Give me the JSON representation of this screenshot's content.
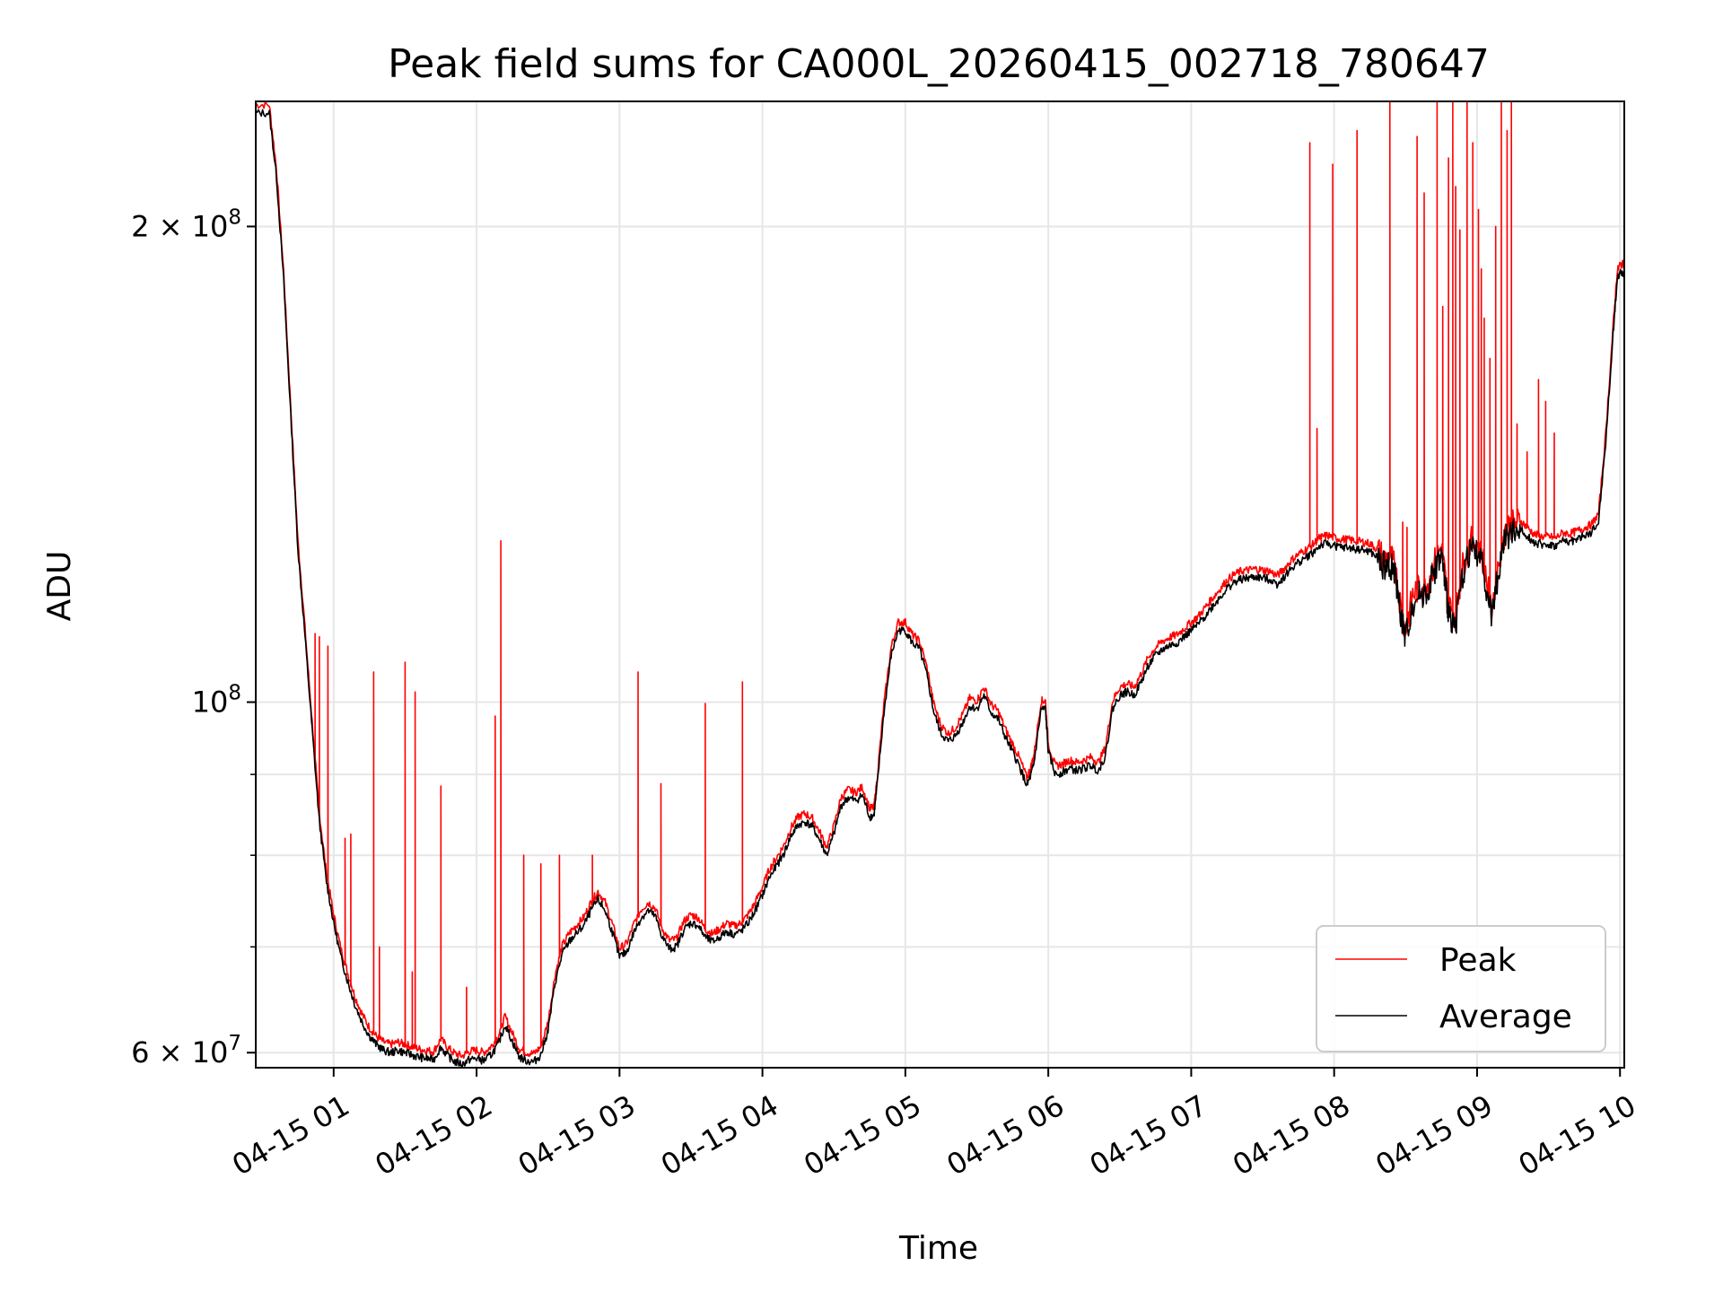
{
  "chart_data": {
    "type": "line",
    "title": "Peak field sums for CA000L_20260415_002718_780647",
    "xlabel": "Time",
    "ylabel": "ADU",
    "y_scale": "log",
    "ylim": [
      58700000,
      240000000
    ],
    "xlim_hours": [
      0.455,
      10.03
    ],
    "grid": true,
    "legend_position": "lower-right",
    "x_ticks": [
      {
        "hour": 1,
        "label": "04-15 01"
      },
      {
        "hour": 2,
        "label": "04-15 02"
      },
      {
        "hour": 3,
        "label": "04-15 03"
      },
      {
        "hour": 4,
        "label": "04-15 04"
      },
      {
        "hour": 5,
        "label": "04-15 05"
      },
      {
        "hour": 6,
        "label": "04-15 06"
      },
      {
        "hour": 7,
        "label": "04-15 07"
      },
      {
        "hour": 8,
        "label": "04-15 08"
      },
      {
        "hour": 9,
        "label": "04-15 09"
      },
      {
        "hour": 10,
        "label": "04-15 10"
      }
    ],
    "y_major_ticks": [
      {
        "value": 60000000,
        "base": "6 × 10",
        "exp": "7"
      },
      {
        "value": 100000000,
        "base": "10",
        "exp": "8"
      },
      {
        "value": 200000000,
        "base": "2 × 10",
        "exp": "8"
      }
    ],
    "y_minor_ticks": [
      70000000,
      80000000,
      90000000
    ],
    "series": [
      {
        "name": "Average",
        "color": "#000000",
        "points": [
          [
            0.455,
            236
          ],
          [
            0.55,
            236
          ],
          [
            0.6,
            215
          ],
          [
            0.65,
            185
          ],
          [
            0.7,
            152
          ],
          [
            0.75,
            125
          ],
          [
            0.8,
            110
          ],
          [
            0.85,
            96
          ],
          [
            0.9,
            84
          ],
          [
            0.95,
            77
          ],
          [
            1.0,
            72.5
          ],
          [
            1.05,
            69
          ],
          [
            1.1,
            66.5
          ],
          [
            1.15,
            64.3
          ],
          [
            1.2,
            62.7
          ],
          [
            1.25,
            61.5
          ],
          [
            1.3,
            60.7
          ],
          [
            1.35,
            60.2
          ],
          [
            1.4,
            60.0
          ],
          [
            1.45,
            60.2
          ],
          [
            1.5,
            60.0
          ],
          [
            1.55,
            59.8
          ],
          [
            1.6,
            59.6
          ],
          [
            1.65,
            59.5
          ],
          [
            1.7,
            59.4
          ],
          [
            1.75,
            60.5
          ],
          [
            1.8,
            59.7
          ],
          [
            1.85,
            59.2
          ],
          [
            1.9,
            59.0
          ],
          [
            1.95,
            59.4
          ],
          [
            2.0,
            59.5
          ],
          [
            2.05,
            59.3
          ],
          [
            2.1,
            59.8
          ],
          [
            2.15,
            60.7
          ],
          [
            2.2,
            62.5
          ],
          [
            2.25,
            61.0
          ],
          [
            2.3,
            59.6
          ],
          [
            2.35,
            59.3
          ],
          [
            2.4,
            59.2
          ],
          [
            2.45,
            59.8
          ],
          [
            2.5,
            62.0
          ],
          [
            2.55,
            66.5
          ],
          [
            2.6,
            69.3
          ],
          [
            2.65,
            70.6
          ],
          [
            2.7,
            71.4
          ],
          [
            2.75,
            72.2
          ],
          [
            2.8,
            73.8
          ],
          [
            2.85,
            75.0
          ],
          [
            2.9,
            73.8
          ],
          [
            2.95,
            71.5
          ],
          [
            3.0,
            69.0
          ],
          [
            3.05,
            69.5
          ],
          [
            3.1,
            71.5
          ],
          [
            3.15,
            73.0
          ],
          [
            3.2,
            73.8
          ],
          [
            3.25,
            73.2
          ],
          [
            3.3,
            71.0
          ],
          [
            3.35,
            69.8
          ],
          [
            3.4,
            70.0
          ],
          [
            3.45,
            71.8
          ],
          [
            3.5,
            72.5
          ],
          [
            3.55,
            72.2
          ],
          [
            3.6,
            71.0
          ],
          [
            3.65,
            70.5
          ],
          [
            3.7,
            71.0
          ],
          [
            3.75,
            71.6
          ],
          [
            3.8,
            71.3
          ],
          [
            3.85,
            71.6
          ],
          [
            3.9,
            72.5
          ],
          [
            3.95,
            73.8
          ],
          [
            4.0,
            75.5
          ],
          [
            4.05,
            77.5
          ],
          [
            4.1,
            78.8
          ],
          [
            4.15,
            80.2
          ],
          [
            4.2,
            82.3
          ],
          [
            4.25,
            83.6
          ],
          [
            4.3,
            84.0
          ],
          [
            4.35,
            83.4
          ],
          [
            4.4,
            81.8
          ],
          [
            4.45,
            80.0
          ],
          [
            4.5,
            82.5
          ],
          [
            4.55,
            86.0
          ],
          [
            4.6,
            87.0
          ],
          [
            4.65,
            86.6
          ],
          [
            4.7,
            87.3
          ],
          [
            4.75,
            84.6
          ],
          [
            4.78,
            84.8
          ],
          [
            4.8,
            88.0
          ],
          [
            4.85,
            98.5
          ],
          [
            4.9,
            107.0
          ],
          [
            4.95,
            111.0
          ],
          [
            5.0,
            111.0
          ],
          [
            5.05,
            109.0
          ],
          [
            5.1,
            108.0
          ],
          [
            5.15,
            104.0
          ],
          [
            5.2,
            98.5
          ],
          [
            5.25,
            95.5
          ],
          [
            5.3,
            94.4
          ],
          [
            5.35,
            95.2
          ],
          [
            5.4,
            97.0
          ],
          [
            5.45,
            99.4
          ],
          [
            5.5,
            99.0
          ],
          [
            5.55,
            101.0
          ],
          [
            5.6,
            98.5
          ],
          [
            5.65,
            97.5
          ],
          [
            5.7,
            95.0
          ],
          [
            5.75,
            93.0
          ],
          [
            5.8,
            91.0
          ],
          [
            5.85,
            88.5
          ],
          [
            5.88,
            90.0
          ],
          [
            5.9,
            91.5
          ],
          [
            5.95,
            99.0
          ],
          [
            5.98,
            99.0
          ],
          [
            6.0,
            93.0
          ],
          [
            6.05,
            90.0
          ],
          [
            6.1,
            90.3
          ],
          [
            6.15,
            90.8
          ],
          [
            6.2,
            90.5
          ],
          [
            6.25,
            90.8
          ],
          [
            6.3,
            91.2
          ],
          [
            6.35,
            90.5
          ],
          [
            6.4,
            92.5
          ],
          [
            6.45,
            99.0
          ],
          [
            6.5,
            101.0
          ],
          [
            6.55,
            101.5
          ],
          [
            6.6,
            101.0
          ],
          [
            6.65,
            103.0
          ],
          [
            6.7,
            105.5
          ],
          [
            6.75,
            107.0
          ],
          [
            6.8,
            108.0
          ],
          [
            6.85,
            108.6
          ],
          [
            6.9,
            109.0
          ],
          [
            6.95,
            110.0
          ],
          [
            7.0,
            111.0
          ],
          [
            7.05,
            112.0
          ],
          [
            7.1,
            113.5
          ],
          [
            7.15,
            115.0
          ],
          [
            7.2,
            116.5
          ],
          [
            7.25,
            118.0
          ],
          [
            7.3,
            119.0
          ],
          [
            7.35,
            119.6
          ],
          [
            7.4,
            119.8
          ],
          [
            7.45,
            120.0
          ],
          [
            7.5,
            119.8
          ],
          [
            7.55,
            119.6
          ],
          [
            7.6,
            118.8
          ],
          [
            7.65,
            120.0
          ],
          [
            7.7,
            121.5
          ],
          [
            7.75,
            122.6
          ],
          [
            7.8,
            123.4
          ],
          [
            7.85,
            124.3
          ],
          [
            7.9,
            125.6
          ],
          [
            7.95,
            126.0
          ],
          [
            8.0,
            125.6
          ],
          [
            8.05,
            125.3
          ],
          [
            8.1,
            125.2
          ],
          [
            8.15,
            125.0
          ],
          [
            8.2,
            124.8
          ],
          [
            8.25,
            124.5
          ],
          [
            8.3,
            123.5
          ],
          [
            8.35,
            121.8
          ],
          [
            8.4,
            122.0
          ],
          [
            8.43,
            119.8
          ],
          [
            8.47,
            113.0
          ],
          [
            8.5,
            109.5
          ],
          [
            8.55,
            115.5
          ],
          [
            8.6,
            117.0
          ],
          [
            8.65,
            117.3
          ],
          [
            8.7,
            121.0
          ],
          [
            8.75,
            124.0
          ],
          [
            8.78,
            118.0
          ],
          [
            8.8,
            114.0
          ],
          [
            8.85,
            112.0
          ],
          [
            8.9,
            120.5
          ],
          [
            8.95,
            125.0
          ],
          [
            9.0,
            124.5
          ],
          [
            9.05,
            121.0
          ],
          [
            9.1,
            113.0
          ],
          [
            9.15,
            121.0
          ],
          [
            9.2,
            127.5
          ],
          [
            9.25,
            128.0
          ],
          [
            9.3,
            128.8
          ],
          [
            9.35,
            127.5
          ],
          [
            9.4,
            126.2
          ],
          [
            9.45,
            125.8
          ],
          [
            9.5,
            125.8
          ],
          [
            9.55,
            125.5
          ],
          [
            9.6,
            126.5
          ],
          [
            9.65,
            126.3
          ],
          [
            9.7,
            126.8
          ],
          [
            9.75,
            127.4
          ],
          [
            9.8,
            128.0
          ],
          [
            9.85,
            130.0
          ],
          [
            9.9,
            146.0
          ],
          [
            9.95,
            170.0
          ],
          [
            9.98,
            185.0
          ],
          [
            10.0,
            187.0
          ],
          [
            10.03,
            187.0
          ]
        ]
      },
      {
        "name": "Peak",
        "color": "#ff0000",
        "offset_ratio": 1.012,
        "spikes": [
          [
            0.87,
            110.5
          ],
          [
            0.9,
            110.0
          ],
          [
            0.96,
            108.5
          ],
          [
            1.08,
            82.0
          ],
          [
            1.12,
            82.5
          ],
          [
            1.28,
            104.5
          ],
          [
            1.32,
            70.0
          ],
          [
            1.5,
            106.0
          ],
          [
            1.57,
            101.5
          ],
          [
            1.75,
            88.5
          ],
          [
            1.55,
            67.5
          ],
          [
            1.93,
            66.0
          ],
          [
            2.13,
            98.0
          ],
          [
            2.17,
            126.5
          ],
          [
            2.33,
            80.0
          ],
          [
            2.45,
            79.0
          ],
          [
            2.58,
            80.0
          ],
          [
            2.81,
            80.0
          ],
          [
            3.13,
            104.5
          ],
          [
            3.29,
            88.8
          ],
          [
            3.6,
            99.8
          ],
          [
            3.86,
            103.0
          ],
          [
            7.83,
            226.0
          ],
          [
            7.88,
            149.0
          ],
          [
            7.91,
            126.0
          ],
          [
            7.99,
            219.0
          ],
          [
            8.16,
            230.0
          ],
          [
            8.39,
            240.0
          ],
          [
            8.48,
            130.0
          ],
          [
            8.51,
            129.0
          ],
          [
            8.58,
            228.0
          ],
          [
            8.63,
            210.0
          ],
          [
            8.72,
            240.0
          ],
          [
            8.76,
            178.0
          ],
          [
            8.8,
            221.0
          ],
          [
            8.83,
            240.0
          ],
          [
            8.85,
            212.0
          ],
          [
            8.88,
            199.0
          ],
          [
            8.93,
            240.0
          ],
          [
            8.97,
            226.0
          ],
          [
            9.01,
            205.0
          ],
          [
            9.03,
            188.0
          ],
          [
            9.05,
            175.0
          ],
          [
            9.09,
            165.0
          ],
          [
            9.13,
            200.0
          ],
          [
            9.17,
            240.0
          ],
          [
            9.21,
            230.0
          ],
          [
            9.24,
            240.0
          ],
          [
            9.28,
            150.0
          ],
          [
            9.35,
            144.0
          ],
          [
            9.43,
            160.0
          ],
          [
            9.48,
            155.0
          ],
          [
            9.54,
            148.0
          ]
        ]
      }
    ]
  }
}
